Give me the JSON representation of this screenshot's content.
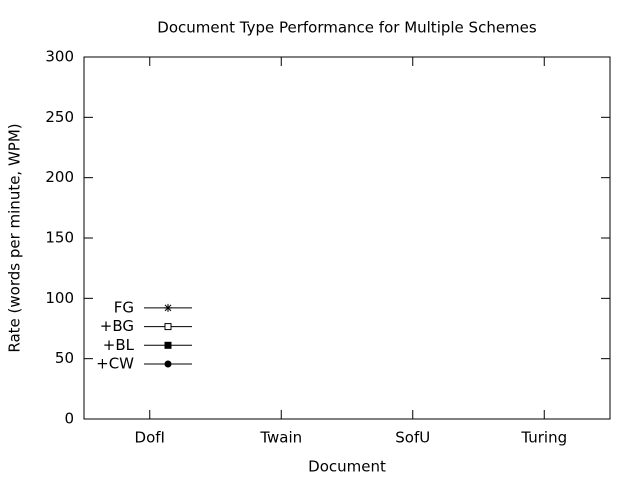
{
  "chart_data": {
    "type": "line",
    "title": "Document Type Performance for Multiple Schemes",
    "x_label": "Document",
    "y_label": "Rate (words per minute, WPM)",
    "categories": [
      "DofI",
      "Twain",
      "SofU",
      "Turing"
    ],
    "series": [
      {
        "name": "FG",
        "color": "#000000",
        "marker": "star",
        "values": [
          null,
          null,
          null,
          null
        ]
      },
      {
        "name": "+BG",
        "color": "#000000",
        "marker": "open-square",
        "values": [
          null,
          null,
          null,
          null
        ]
      },
      {
        "name": "+BL",
        "color": "#000000",
        "marker": "filled-square",
        "values": [
          null,
          null,
          null,
          null
        ]
      },
      {
        "name": "+CW",
        "color": "#000000",
        "marker": "filled-circle",
        "values": [
          null,
          null,
          null,
          null
        ]
      }
    ],
    "ylim": [
      0,
      300
    ],
    "yticks": [
      0,
      50,
      100,
      150,
      200,
      250,
      300
    ],
    "legend": "bottom-left",
    "grid": false
  }
}
